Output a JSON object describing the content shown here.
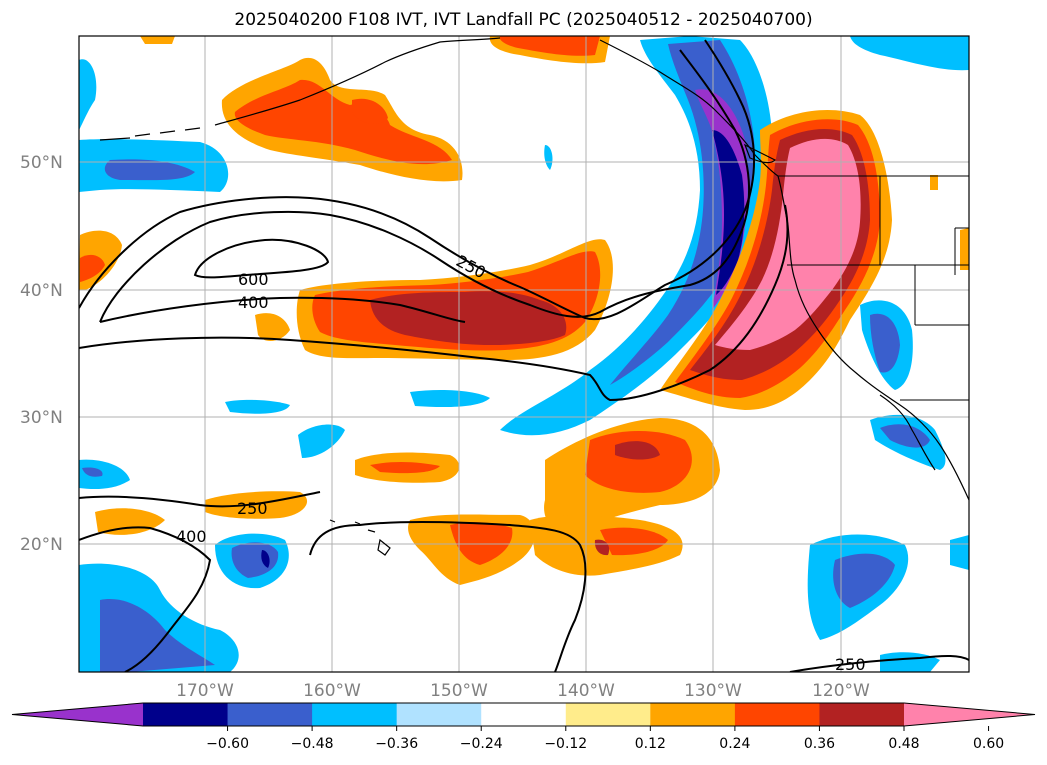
{
  "title": "2025040200 F108 IVT, IVT Landfall PC (2025040512 - 2025040700)",
  "lat_labels": [
    "50°N",
    "40°N",
    "30°N",
    "20°N"
  ],
  "lon_labels": [
    "170°W",
    "160°W",
    "150°W",
    "140°W",
    "130°W",
    "120°W"
  ],
  "contour_labels": [
    "600",
    "400",
    "250",
    "250",
    "400",
    "250"
  ],
  "colorbar": {
    "ticks": [
      "−0.60",
      "−0.48",
      "−0.36",
      "−0.24",
      "−0.12",
      "0.12",
      "0.24",
      "0.36",
      "0.48",
      "0.60"
    ],
    "colors": [
      "#9932cc",
      "#00008b",
      "#3a5fcd",
      "#00bfff",
      "#b0e2ff",
      "#ffffff",
      "#ffec8b",
      "#ffa500",
      "#ff4500",
      "#b22222",
      "#ff82ab"
    ]
  },
  "map_colors": {
    "ocean": "#ffffff",
    "grid": "#b0b0b0",
    "contour": "#000000",
    "coast": "#000000"
  }
}
